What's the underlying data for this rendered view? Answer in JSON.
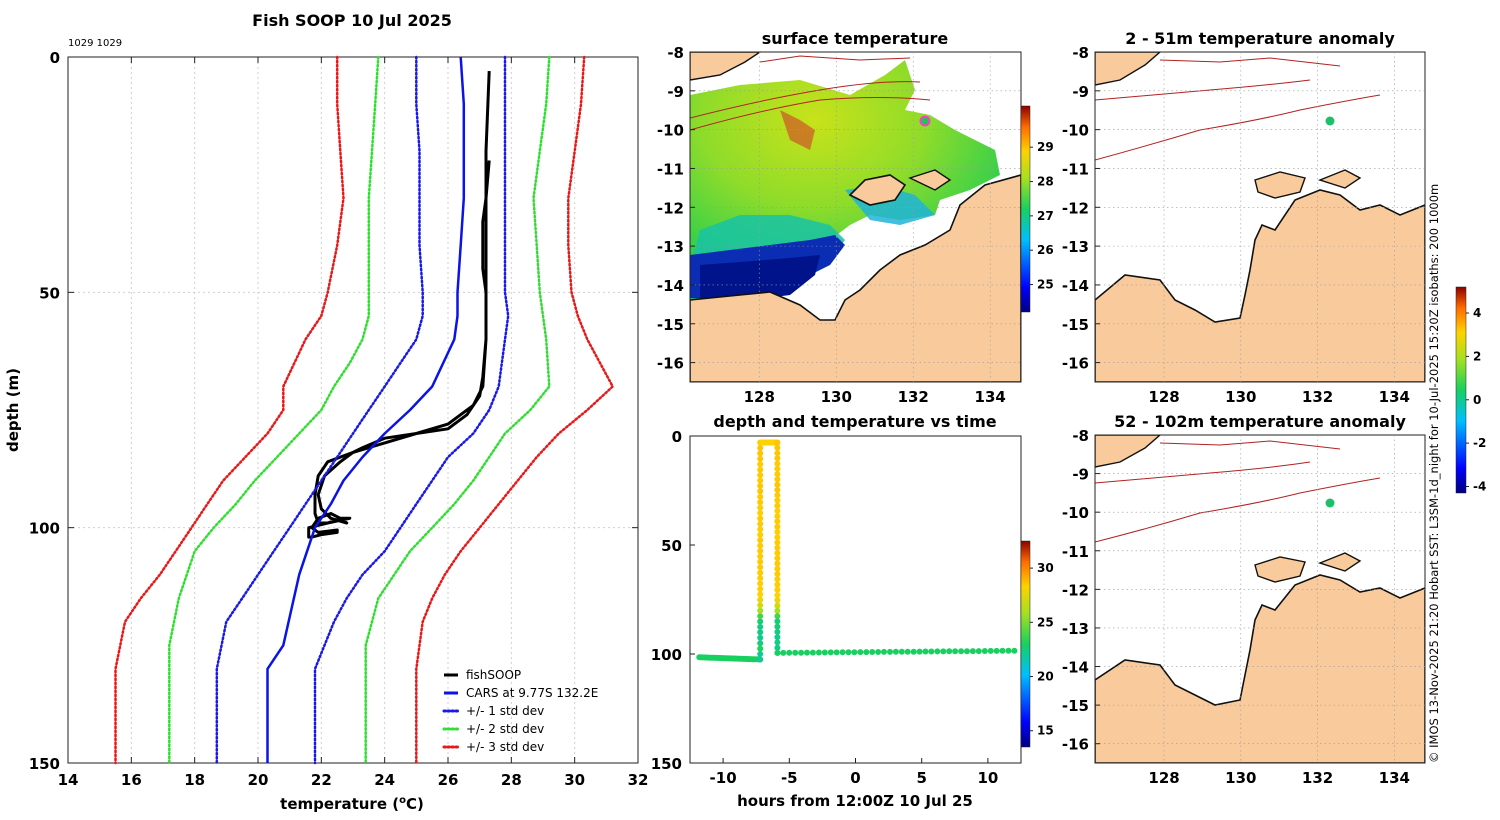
{
  "figure": {
    "copyright": "© IMOS 13-Nov-2025 21:20 Hobart SST: L3SM-1d_night for 10-Jul-2025 15:20Z isobaths: 200  1000m"
  },
  "colors": {
    "fishsoop": "#000000",
    "cars": "#0a14e6",
    "std1": "#1a1ae6",
    "std2": "#33dd33",
    "std3": "#e61a1a",
    "land": "#f9cb9c",
    "isobath": "#b22222",
    "marker_green": "#1fbf6a",
    "marker_magenta": "#ff3cc8"
  },
  "chart_data": [
    {
      "id": "profile",
      "type": "line",
      "title": "Fish SOOP 10 Jul 2025",
      "subtitle": "1029 1029",
      "xlabel": "temperature (°C)",
      "xlabel_parts": [
        "temperature (",
        "o",
        "C)"
      ],
      "ylabel": "depth (m)",
      "xlim": [
        14,
        32
      ],
      "ylim": [
        150,
        0
      ],
      "xticks": [
        14,
        16,
        18,
        20,
        22,
        24,
        26,
        28,
        30,
        32
      ],
      "yticks": [
        0,
        50,
        100,
        150
      ],
      "grid": true,
      "legend_position": "bottom-right",
      "series": [
        {
          "name": "fishSOOP",
          "key": "fishsoop",
          "style": "solid",
          "width": 3,
          "x": [
            27.3,
            27.2,
            27.2,
            27.2,
            27.2,
            27.1,
            27.0,
            26.6,
            26.0,
            25.0,
            24.0,
            23.0,
            22.2,
            21.9,
            21.8,
            21.8,
            21.9,
            22.2,
            22.6,
            22.9,
            22.2,
            21.6,
            21.6,
            21.7,
            22.0,
            22.5,
            22.5,
            21.9,
            21.7,
            21.9,
            22.3,
            22.6,
            22.8,
            22.3,
            22.0,
            21.9,
            22.1,
            22.6,
            23.0,
            23.3,
            24.0,
            25.0,
            26.0,
            26.8,
            27.1,
            27.2,
            27.2,
            27.1,
            27.1,
            27.2,
            27.3
          ],
          "y": [
            3,
            20,
            40,
            50,
            60,
            68,
            72,
            76,
            79,
            80,
            82,
            84,
            86,
            89,
            93,
            97,
            99,
            99,
            98,
            98,
            99,
            100,
            102,
            102,
            101.5,
            101,
            100.5,
            101,
            100,
            98,
            97,
            98,
            99,
            98,
            96,
            93,
            89,
            86,
            84,
            83,
            81,
            80,
            78,
            74,
            70,
            60,
            50,
            45,
            35,
            30,
            22
          ]
        },
        {
          "name": "CARS at 9.77S 132.2E",
          "key": "cars",
          "style": "solid",
          "width": 2.5,
          "x": [
            26.4,
            26.5,
            26.5,
            26.5,
            26.4,
            26.3,
            26.3,
            26.2,
            25.5,
            24.8,
            24.0,
            23.3,
            22.7,
            22.3,
            21.8,
            21.3,
            20.8,
            20.3,
            20.3
          ],
          "y": [
            0,
            10,
            20,
            30,
            40,
            50,
            55,
            60,
            70,
            75,
            80,
            85,
            90,
            95,
            100,
            110,
            125,
            130,
            150
          ]
        },
        {
          "name": "+/- 1 std dev",
          "key": "std1",
          "style": "dotted",
          "width": 2.5,
          "x": [
            25.0,
            25.0,
            25.1,
            25.1,
            25.1,
            25.2,
            25.2,
            25.0,
            24.5,
            24.0,
            23.5,
            23.0,
            22.5,
            22.0,
            21.5,
            21.0,
            20.5,
            20.0,
            19.5,
            19.0,
            18.7,
            18.7,
            18.7
          ],
          "y": [
            0,
            10,
            20,
            30,
            40,
            50,
            55,
            60,
            65,
            70,
            75,
            80,
            85,
            90,
            95,
            100,
            105,
            110,
            115,
            120,
            130,
            140,
            150
          ]
        },
        {
          "name": "+/- 1 std dev (upper)",
          "key": "std1",
          "style": "dotted",
          "width": 2.5,
          "x": [
            27.8,
            27.8,
            27.8,
            27.8,
            27.8,
            27.8,
            27.9,
            27.8,
            27.6,
            27.3,
            26.8,
            26.0,
            25.5,
            25.0,
            24.5,
            24.0,
            23.3,
            22.8,
            22.4,
            22.1,
            21.8,
            21.8,
            21.8
          ],
          "y": [
            0,
            10,
            20,
            30,
            40,
            50,
            55,
            60,
            70,
            75,
            80,
            85,
            90,
            95,
            100,
            105,
            110,
            115,
            120,
            125,
            130,
            140,
            150
          ]
        },
        {
          "name": "+/- 2 std dev",
          "key": "std2",
          "style": "dotted",
          "width": 2.5,
          "x": [
            23.8,
            23.7,
            23.6,
            23.5,
            23.5,
            23.5,
            23.5,
            23.3,
            22.9,
            22.4,
            22.0,
            21.3,
            20.6,
            19.9,
            19.3,
            18.6,
            18.0,
            17.5,
            17.2,
            17.2,
            17.2
          ],
          "y": [
            0,
            10,
            20,
            30,
            40,
            50,
            55,
            60,
            65,
            70,
            75,
            80,
            85,
            90,
            95,
            100,
            105,
            115,
            125,
            130,
            150
          ]
        },
        {
          "name": "+/- 2 std dev (upper)",
          "key": "std2",
          "style": "dotted",
          "width": 2.5,
          "x": [
            29.2,
            29.1,
            28.9,
            28.7,
            28.8,
            28.9,
            29.0,
            29.1,
            29.2,
            28.6,
            27.8,
            27.3,
            26.8,
            26.2,
            25.5,
            24.8,
            24.3,
            23.8,
            23.4,
            23.4,
            23.4
          ],
          "y": [
            0,
            10,
            20,
            30,
            40,
            50,
            55,
            60,
            70,
            75,
            80,
            85,
            90,
            95,
            100,
            105,
            110,
            115,
            125,
            130,
            150
          ]
        },
        {
          "name": "+/- 3 std dev",
          "key": "std3",
          "style": "dotted",
          "width": 2.5,
          "x": [
            22.5,
            22.5,
            22.6,
            22.7,
            22.5,
            22.2,
            22.0,
            21.5,
            20.8,
            20.8,
            20.3,
            19.6,
            18.9,
            18.4,
            17.9,
            17.4,
            16.9,
            16.3,
            15.8,
            15.5,
            15.5
          ],
          "y": [
            0,
            10,
            20,
            30,
            40,
            50,
            55,
            60,
            70,
            75,
            80,
            85,
            90,
            95,
            100,
            105,
            110,
            115,
            120,
            130,
            150
          ]
        },
        {
          "name": "+/- 3 std dev (upper)",
          "key": "std3",
          "style": "dotted",
          "width": 2.5,
          "x": [
            30.3,
            30.2,
            30.0,
            29.8,
            29.8,
            29.9,
            30.1,
            30.4,
            31.2,
            30.4,
            29.5,
            28.8,
            28.2,
            27.6,
            27.0,
            26.4,
            25.9,
            25.5,
            25.2,
            25.0,
            25.0
          ],
          "y": [
            0,
            10,
            20,
            30,
            40,
            50,
            55,
            60,
            70,
            75,
            80,
            85,
            90,
            95,
            100,
            105,
            110,
            115,
            120,
            130,
            150
          ]
        }
      ],
      "legend": [
        {
          "label": "fishSOOP",
          "key": "fishsoop",
          "style": "solid"
        },
        {
          "label": "CARS at 9.77S 132.2E",
          "key": "cars",
          "style": "solid"
        },
        {
          "label": "+/- 1 std dev",
          "key": "std1",
          "style": "dotted"
        },
        {
          "label": "+/- 2 std dev",
          "key": "std2",
          "style": "dotted"
        },
        {
          "label": "+/- 3 std dev",
          "key": "std3",
          "style": "dotted"
        }
      ]
    },
    {
      "id": "sst_map",
      "type": "heatmap",
      "title": "surface temperature",
      "xlim": [
        126.2,
        134.8
      ],
      "ylim": [
        -16.5,
        -8
      ],
      "xticks": [
        128,
        130,
        132,
        134
      ],
      "yticks": [
        -8,
        -9,
        -10,
        -11,
        -12,
        -13,
        -14,
        -15,
        -16
      ],
      "colorbar": {
        "min": 24.2,
        "max": 30.2,
        "ticks": [
          25,
          26,
          27,
          28,
          29
        ]
      },
      "marker": {
        "lon": 132.2,
        "lat": -9.77
      }
    },
    {
      "id": "anom_2_51",
      "type": "heatmap",
      "title": "2 - 51m temperature anomaly",
      "xlim": [
        126.2,
        134.8
      ],
      "ylim": [
        -16.5,
        -8
      ],
      "xticks": [
        128,
        130,
        132,
        134
      ],
      "yticks": [
        -8,
        -9,
        -10,
        -11,
        -12,
        -13,
        -14,
        -15,
        -16
      ],
      "marker": {
        "lon": 132.2,
        "lat": -9.77
      }
    },
    {
      "id": "anom_52_102",
      "type": "heatmap",
      "title": "52 - 102m temperature anomaly",
      "xlim": [
        126.2,
        134.8
      ],
      "ylim": [
        -16.5,
        -8
      ],
      "xticks": [
        128,
        130,
        132,
        134
      ],
      "yticks": [
        -8,
        -9,
        -10,
        -11,
        -12,
        -13,
        -14,
        -15,
        -16
      ],
      "marker": {
        "lon": 132.2,
        "lat": -9.77
      }
    },
    {
      "id": "anom_colorbar",
      "type": "heatmap",
      "min": -4.3,
      "max": 5.2,
      "ticks": [
        -4,
        -2,
        0,
        2,
        4
      ]
    },
    {
      "id": "depth_time",
      "type": "scatter",
      "title": "depth and temperature vs time",
      "xlabel": "hours from 12:00Z 10 Jul 25",
      "xlim": [
        -12.5,
        12.5
      ],
      "ylim": [
        150,
        0
      ],
      "xticks": [
        -10,
        -5,
        0,
        5,
        10
      ],
      "yticks": [
        0,
        50,
        100,
        150
      ],
      "colorbar": {
        "min": 13.5,
        "max": 32.5,
        "ticks": [
          15,
          20,
          25,
          30
        ]
      },
      "segments": [
        {
          "t": [
            -11.8,
            -7.2
          ],
          "depth": [
            101.5,
            102.5
          ],
          "temp": 22.5
        },
        {
          "t": [
            -7.2,
            -7.2
          ],
          "depth": [
            102.5,
            3
          ],
          "temp": "profile"
        },
        {
          "t": [
            -7.1,
            -6.0
          ],
          "depth": [
            3,
            3
          ],
          "temp": 27.0
        },
        {
          "t": [
            -5.9,
            -5.9
          ],
          "depth": [
            3,
            99.5
          ],
          "temp": "profile"
        },
        {
          "t": [
            -5.9,
            12.0
          ],
          "depth": [
            99.5,
            98.5
          ],
          "temp": 22.5
        }
      ]
    }
  ]
}
